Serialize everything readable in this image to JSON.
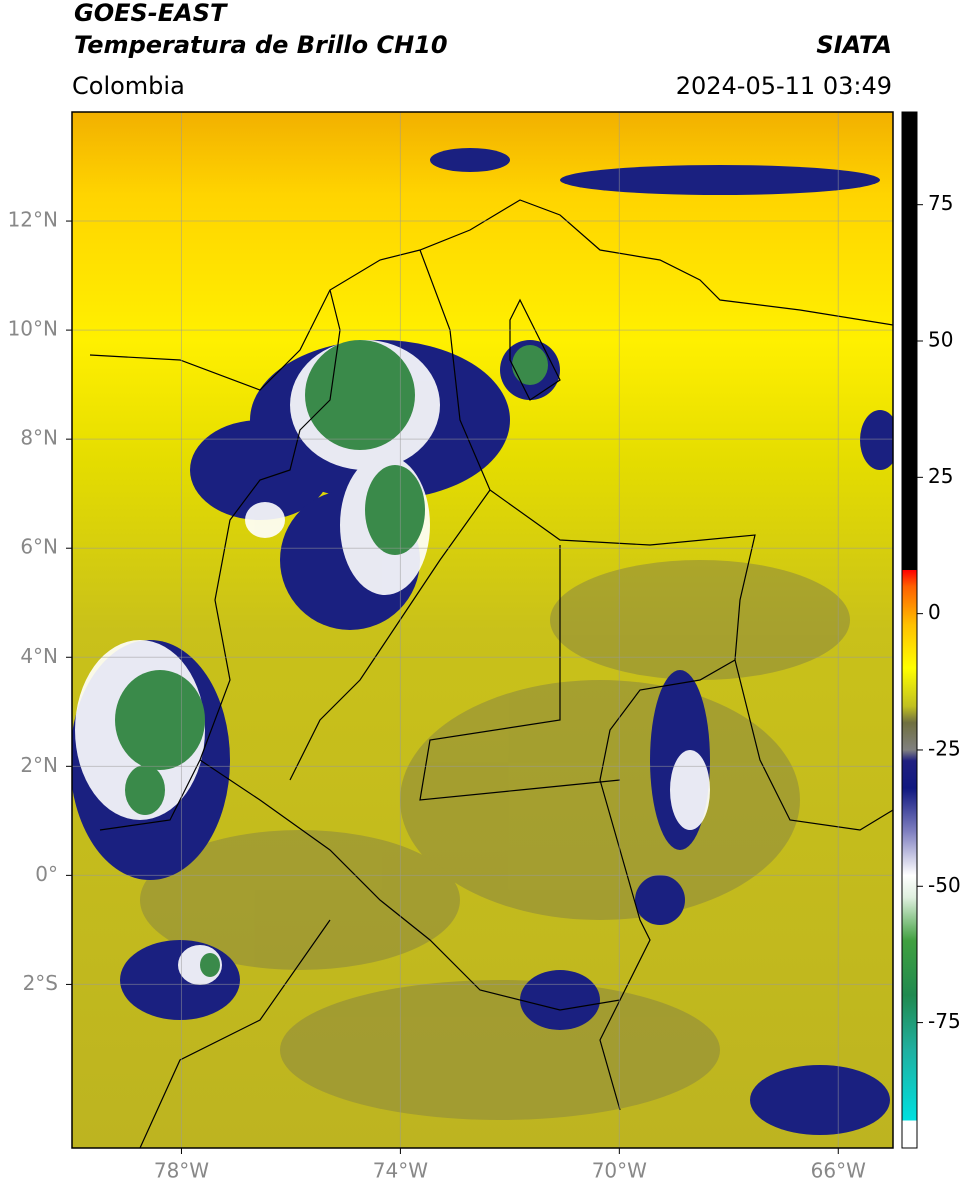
{
  "header": {
    "satellite": "GOES-EAST",
    "product": "Temperatura de Brillo CH10",
    "source": "SIATA",
    "region": "Colombia",
    "datetime": "2024-05-11 03:49"
  },
  "map": {
    "lonlim": [
      -80,
      -65
    ],
    "latlim": [
      -5,
      14
    ],
    "xticks": [
      {
        "value": -78,
        "label": "78°W"
      },
      {
        "value": -74,
        "label": "74°W"
      },
      {
        "value": -70,
        "label": "70°W"
      },
      {
        "value": -66,
        "label": "66°W"
      }
    ],
    "yticks": [
      {
        "value": 12,
        "label": "12°N"
      },
      {
        "value": 10,
        "label": "10°N"
      },
      {
        "value": 8,
        "label": "8°N"
      },
      {
        "value": 6,
        "label": "6°N"
      },
      {
        "value": 4,
        "label": "4°N"
      },
      {
        "value": 2,
        "label": "2°N"
      },
      {
        "value": 0,
        "label": "0°"
      },
      {
        "value": -2,
        "label": "2°S"
      }
    ],
    "grid": true
  },
  "colorbar": {
    "lim": [
      -98,
      92
    ],
    "ticks": [
      75,
      50,
      25,
      0,
      -25,
      -50,
      -75
    ],
    "stops": [
      {
        "value": -98,
        "color": "#ffffff"
      },
      {
        "value": -93,
        "color": "#ffffff"
      },
      {
        "value": -93,
        "color": "#00e0e0"
      },
      {
        "value": -80,
        "color": "#20b0a0"
      },
      {
        "value": -70,
        "color": "#208a50"
      },
      {
        "value": -60,
        "color": "#40a040"
      },
      {
        "value": -52,
        "color": "#e0f0e0"
      },
      {
        "value": -48,
        "color": "#ffffff"
      },
      {
        "value": -40,
        "color": "#8080c0"
      },
      {
        "value": -32,
        "color": "#101880"
      },
      {
        "value": -27,
        "color": "#202080"
      },
      {
        "value": -25,
        "color": "#808080"
      },
      {
        "value": -20,
        "color": "#707040"
      },
      {
        "value": -17,
        "color": "#c0c020"
      },
      {
        "value": -10,
        "color": "#ffff00"
      },
      {
        "value": -2,
        "color": "#ffc000"
      },
      {
        "value": 5,
        "color": "#ff6000"
      },
      {
        "value": 8,
        "color": "#ff0000"
      },
      {
        "value": 8,
        "color": "#000000"
      },
      {
        "value": 92,
        "color": "#000000"
      }
    ]
  }
}
